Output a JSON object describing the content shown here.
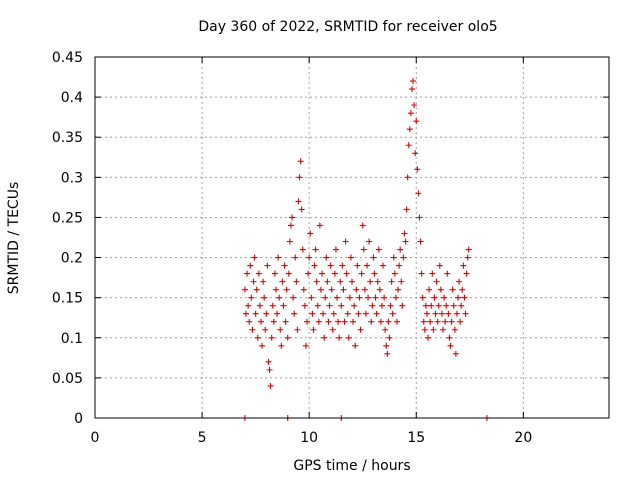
{
  "chart_data": {
    "type": "scatter",
    "title": "Day 360 of 2022, SRMTID for receiver olo5",
    "xlabel": "GPS time / hours",
    "ylabel": "SRMTID / TECUs",
    "xlim": [
      0,
      24
    ],
    "ylim": [
      0,
      0.45
    ],
    "xticks": [
      0,
      5,
      10,
      15,
      20
    ],
    "xtick_labels": [
      "0",
      "5",
      "10",
      "15",
      "20"
    ],
    "yticks": [
      0,
      0.05,
      0.1,
      0.15,
      0.2,
      0.25,
      0.3,
      0.35,
      0.4,
      0.45
    ],
    "ytick_labels": [
      "0",
      "0.05",
      "0.1",
      "0.15",
      "0.2",
      "0.25",
      "0.3",
      "0.35",
      "0.4",
      "0.45"
    ],
    "grid": true,
    "marker": "+",
    "color": "#e00000",
    "series": [
      {
        "name": "SRMTID",
        "points": [
          [
            7.0,
            0.0
          ],
          [
            9.0,
            0.0
          ],
          [
            11.5,
            0.0
          ],
          [
            18.3,
            0.0
          ],
          [
            7.0,
            0.16
          ],
          [
            7.05,
            0.13
          ],
          [
            7.1,
            0.18
          ],
          [
            7.15,
            0.14
          ],
          [
            7.2,
            0.12
          ],
          [
            7.25,
            0.19
          ],
          [
            7.3,
            0.15
          ],
          [
            7.35,
            0.11
          ],
          [
            7.4,
            0.17
          ],
          [
            7.45,
            0.2
          ],
          [
            7.5,
            0.13
          ],
          [
            7.55,
            0.16
          ],
          [
            7.6,
            0.1
          ],
          [
            7.65,
            0.18
          ],
          [
            7.7,
            0.14
          ],
          [
            7.75,
            0.12
          ],
          [
            7.8,
            0.09
          ],
          [
            7.85,
            0.17
          ],
          [
            7.9,
            0.15
          ],
          [
            7.95,
            0.11
          ],
          [
            8.0,
            0.13
          ],
          [
            8.05,
            0.19
          ],
          [
            8.1,
            0.07
          ],
          [
            8.15,
            0.06
          ],
          [
            8.2,
            0.04
          ],
          [
            8.25,
            0.1
          ],
          [
            8.3,
            0.14
          ],
          [
            8.35,
            0.12
          ],
          [
            8.4,
            0.18
          ],
          [
            8.45,
            0.16
          ],
          [
            8.5,
            0.13
          ],
          [
            8.55,
            0.2
          ],
          [
            8.6,
            0.15
          ],
          [
            8.65,
            0.11
          ],
          [
            8.7,
            0.09
          ],
          [
            8.75,
            0.17
          ],
          [
            8.8,
            0.14
          ],
          [
            8.85,
            0.19
          ],
          [
            8.9,
            0.12
          ],
          [
            8.95,
            0.16
          ],
          [
            9.0,
            0.1
          ],
          [
            9.05,
            0.18
          ],
          [
            9.1,
            0.22
          ],
          [
            9.15,
            0.24
          ],
          [
            9.2,
            0.25
          ],
          [
            9.25,
            0.15
          ],
          [
            9.3,
            0.13
          ],
          [
            9.35,
            0.2
          ],
          [
            9.4,
            0.17
          ],
          [
            9.45,
            0.11
          ],
          [
            9.5,
            0.27
          ],
          [
            9.55,
            0.3
          ],
          [
            9.6,
            0.32
          ],
          [
            9.65,
            0.26
          ],
          [
            9.7,
            0.21
          ],
          [
            9.75,
            0.16
          ],
          [
            9.8,
            0.14
          ],
          [
            9.85,
            0.09
          ],
          [
            9.9,
            0.12
          ],
          [
            9.95,
            0.18
          ],
          [
            10.0,
            0.2
          ],
          [
            10.05,
            0.23
          ],
          [
            10.1,
            0.15
          ],
          [
            10.15,
            0.13
          ],
          [
            10.2,
            0.11
          ],
          [
            10.25,
            0.19
          ],
          [
            10.3,
            0.21
          ],
          [
            10.35,
            0.17
          ],
          [
            10.4,
            0.14
          ],
          [
            10.45,
            0.12
          ],
          [
            10.5,
            0.24
          ],
          [
            10.55,
            0.16
          ],
          [
            10.6,
            0.18
          ],
          [
            10.65,
            0.13
          ],
          [
            10.7,
            0.1
          ],
          [
            10.75,
            0.15
          ],
          [
            10.8,
            0.2
          ],
          [
            10.85,
            0.17
          ],
          [
            10.9,
            0.12
          ],
          [
            10.95,
            0.14
          ],
          [
            11.0,
            0.19
          ],
          [
            11.05,
            0.16
          ],
          [
            11.1,
            0.11
          ],
          [
            11.15,
            0.13
          ],
          [
            11.2,
            0.18
          ],
          [
            11.25,
            0.21
          ],
          [
            11.3,
            0.15
          ],
          [
            11.35,
            0.12
          ],
          [
            11.4,
            0.1
          ],
          [
            11.45,
            0.17
          ],
          [
            11.5,
            0.14
          ],
          [
            11.55,
            0.19
          ],
          [
            11.6,
            0.16
          ],
          [
            11.65,
            0.12
          ],
          [
            11.7,
            0.22
          ],
          [
            11.75,
            0.18
          ],
          [
            11.8,
            0.13
          ],
          [
            11.85,
            0.1
          ],
          [
            11.9,
            0.15
          ],
          [
            11.95,
            0.2
          ],
          [
            12.0,
            0.17
          ],
          [
            12.05,
            0.12
          ],
          [
            12.1,
            0.14
          ],
          [
            12.15,
            0.09
          ],
          [
            12.2,
            0.16
          ],
          [
            12.25,
            0.19
          ],
          [
            12.3,
            0.13
          ],
          [
            12.35,
            0.15
          ],
          [
            12.4,
            0.11
          ],
          [
            12.45,
            0.18
          ],
          [
            12.5,
            0.24
          ],
          [
            12.55,
            0.21
          ],
          [
            12.6,
            0.16
          ],
          [
            12.65,
            0.13
          ],
          [
            12.7,
            0.19
          ],
          [
            12.75,
            0.15
          ],
          [
            12.8,
            0.22
          ],
          [
            12.85,
            0.17
          ],
          [
            12.9,
            0.12
          ],
          [
            12.95,
            0.14
          ],
          [
            13.0,
            0.2
          ],
          [
            13.05,
            0.18
          ],
          [
            13.1,
            0.15
          ],
          [
            13.15,
            0.13
          ],
          [
            13.2,
            0.17
          ],
          [
            13.25,
            0.21
          ],
          [
            13.3,
            0.16
          ],
          [
            13.35,
            0.12
          ],
          [
            13.4,
            0.14
          ],
          [
            13.45,
            0.19
          ],
          [
            13.5,
            0.15
          ],
          [
            13.55,
            0.11
          ],
          [
            13.6,
            0.09
          ],
          [
            13.65,
            0.08
          ],
          [
            13.7,
            0.12
          ],
          [
            13.75,
            0.1
          ],
          [
            13.8,
            0.14
          ],
          [
            13.85,
            0.17
          ],
          [
            13.9,
            0.13
          ],
          [
            13.95,
            0.2
          ],
          [
            14.0,
            0.18
          ],
          [
            14.05,
            0.15
          ],
          [
            14.1,
            0.12
          ],
          [
            14.15,
            0.16
          ],
          [
            14.2,
            0.19
          ],
          [
            14.25,
            0.21
          ],
          [
            14.3,
            0.17
          ],
          [
            14.35,
            0.14
          ],
          [
            14.4,
            0.2
          ],
          [
            14.45,
            0.23
          ],
          [
            14.5,
            0.22
          ],
          [
            14.55,
            0.26
          ],
          [
            14.6,
            0.3
          ],
          [
            14.65,
            0.34
          ],
          [
            14.7,
            0.36
          ],
          [
            14.75,
            0.38
          ],
          [
            14.8,
            0.41
          ],
          [
            14.85,
            0.42
          ],
          [
            14.9,
            0.39
          ],
          [
            14.95,
            0.33
          ],
          [
            15.0,
            0.37
          ],
          [
            15.05,
            0.31
          ],
          [
            15.1,
            0.28
          ],
          [
            15.15,
            0.25
          ],
          [
            15.2,
            0.22
          ],
          [
            15.25,
            0.18
          ],
          [
            15.3,
            0.15
          ],
          [
            15.35,
            0.12
          ],
          [
            15.4,
            0.11
          ],
          [
            15.45,
            0.14
          ],
          [
            15.5,
            0.13
          ],
          [
            15.55,
            0.1
          ],
          [
            15.6,
            0.16
          ],
          [
            15.65,
            0.12
          ],
          [
            15.7,
            0.14
          ],
          [
            15.75,
            0.18
          ],
          [
            15.8,
            0.11
          ],
          [
            15.85,
            0.15
          ],
          [
            15.9,
            0.13
          ],
          [
            15.95,
            0.17
          ],
          [
            16.0,
            0.12
          ],
          [
            16.05,
            0.14
          ],
          [
            16.1,
            0.19
          ],
          [
            16.15,
            0.16
          ],
          [
            16.2,
            0.13
          ],
          [
            16.25,
            0.11
          ],
          [
            16.3,
            0.15
          ],
          [
            16.35,
            0.12
          ],
          [
            16.4,
            0.14
          ],
          [
            16.45,
            0.18
          ],
          [
            16.5,
            0.13
          ],
          [
            16.55,
            0.1
          ],
          [
            16.6,
            0.09
          ],
          [
            16.65,
            0.12
          ],
          [
            16.7,
            0.16
          ],
          [
            16.75,
            0.14
          ],
          [
            16.8,
            0.11
          ],
          [
            16.85,
            0.08
          ],
          [
            16.9,
            0.13
          ],
          [
            16.95,
            0.15
          ],
          [
            17.0,
            0.17
          ],
          [
            17.05,
            0.12
          ],
          [
            17.1,
            0.14
          ],
          [
            17.15,
            0.16
          ],
          [
            17.2,
            0.19
          ],
          [
            17.25,
            0.15
          ],
          [
            17.3,
            0.13
          ],
          [
            17.35,
            0.18
          ],
          [
            17.4,
            0.2
          ],
          [
            17.45,
            0.21
          ]
        ]
      }
    ]
  }
}
